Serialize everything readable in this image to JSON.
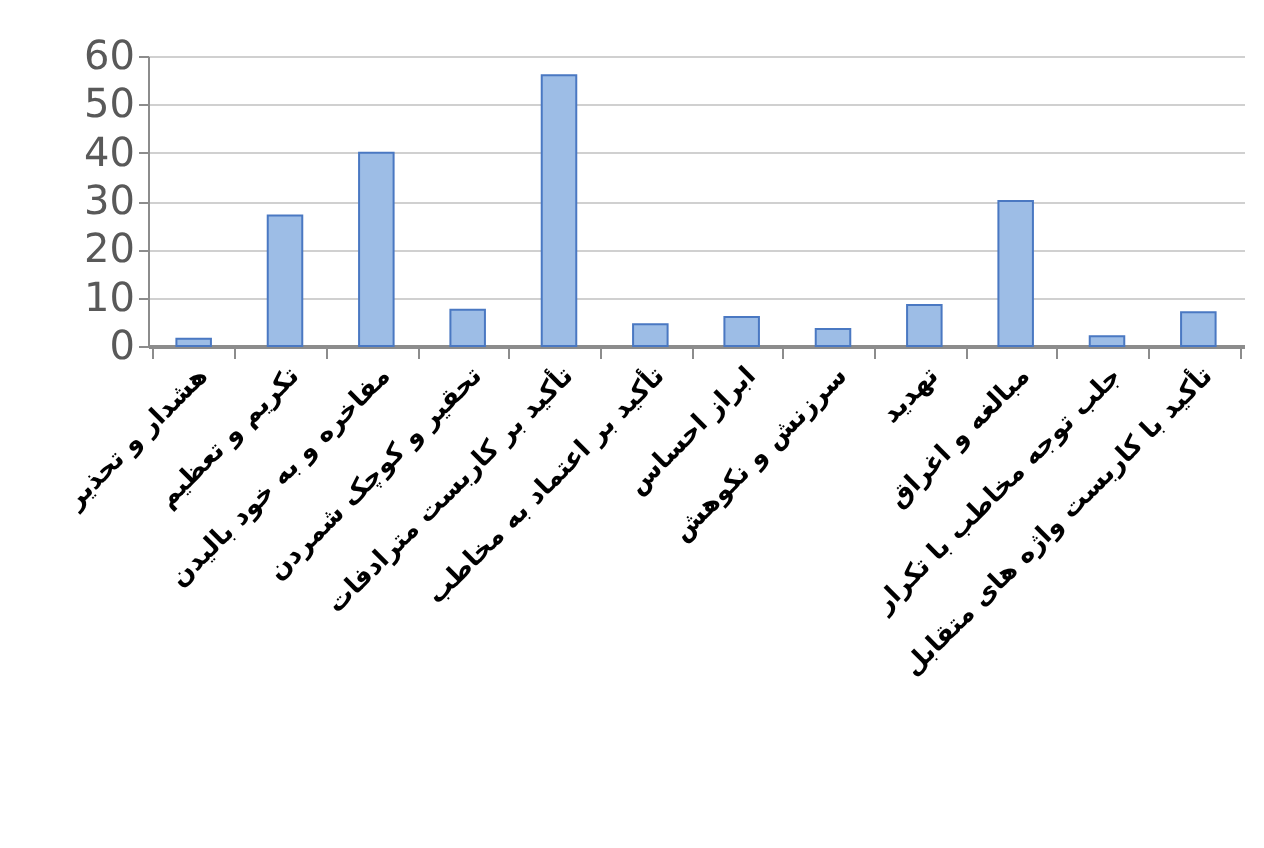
{
  "chart_data": {
    "type": "bar",
    "categories": [
      "هشدار و تحذیر",
      "تکریم و تعظیم",
      "مفاخره و به خود بالیدن",
      "تحقیر و کوچک شمردن",
      "تأکید بر کاربست مترادفات",
      "تأکید بر اعتماد به مخاطب",
      "ابراز احساس",
      "سرزنش و نکوهش",
      "تهدید",
      "مبالغه و اغراق",
      "جلب توجه مخاطب با تکرار",
      "تأکید با کاربست واژه های متقابل"
    ],
    "values": [
      1.5,
      27,
      40,
      7.5,
      56,
      4.5,
      6,
      3.5,
      8.5,
      30,
      2,
      7
    ],
    "color": "#9dbde6",
    "ylim": [
      0,
      60
    ],
    "yticks": [
      0,
      10,
      20,
      30,
      40,
      50,
      60
    ],
    "grid": "y"
  }
}
